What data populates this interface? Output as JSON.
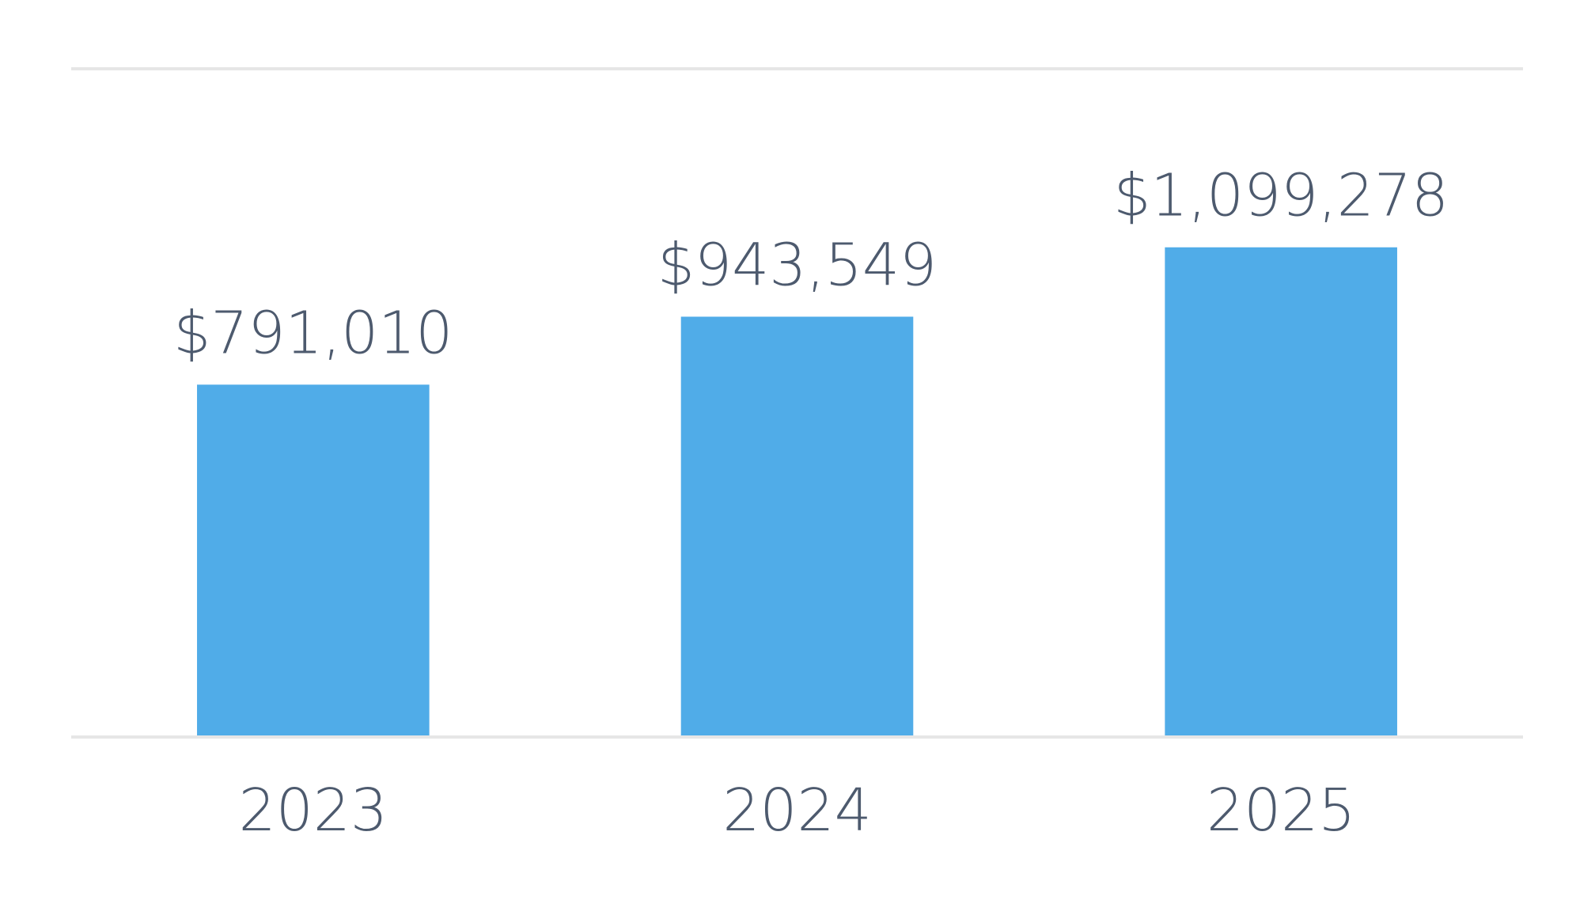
{
  "chart_data": {
    "type": "bar",
    "categories": [
      "2023",
      "2024",
      "2025"
    ],
    "values": [
      791010,
      943549,
      1099278
    ],
    "value_labels": [
      "$791,010",
      "$943,549",
      "$1,099,278"
    ],
    "color": "#50ace8",
    "ylim": [
      0,
      1500000
    ],
    "yticks": [
      0,
      1500000
    ],
    "grid": true
  }
}
